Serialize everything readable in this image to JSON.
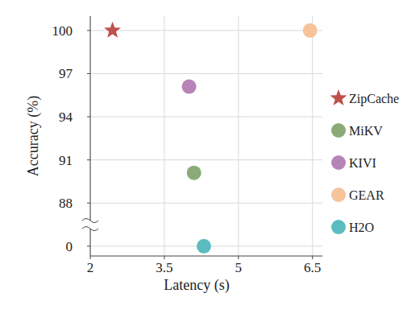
{
  "chart_data": {
    "type": "scatter",
    "xlabel": "Latency (s)",
    "ylabel": "Accuracy (%)",
    "xlim": [
      2,
      6.7
    ],
    "xticks": [
      2,
      3.5,
      5,
      6.5
    ],
    "ylim": [
      -20,
      101
    ],
    "yticks": [
      0,
      88,
      91,
      94,
      97,
      100
    ],
    "grid": true,
    "legend": "right",
    "series": [
      {
        "name": "ZipCache",
        "color": "#c0504d",
        "marker": "star",
        "x": [
          2.45
        ],
        "values": [
          100
        ]
      },
      {
        "name": "MiKV",
        "color": "#8aab78",
        "marker": "circle",
        "x": [
          4.1
        ],
        "values": [
          90.1
        ]
      },
      {
        "name": "KIVI",
        "color": "#b784b7",
        "marker": "circle",
        "x": [
          4.0
        ],
        "values": [
          96.1
        ]
      },
      {
        "name": "GEAR",
        "color": "#f6c39b",
        "marker": "circle",
        "x": [
          6.45
        ],
        "values": [
          100
        ]
      },
      {
        "name": "H2O",
        "color": "#5bbcbf",
        "marker": "circle",
        "x": [
          4.3
        ],
        "values": [
          0
        ]
      }
    ]
  }
}
